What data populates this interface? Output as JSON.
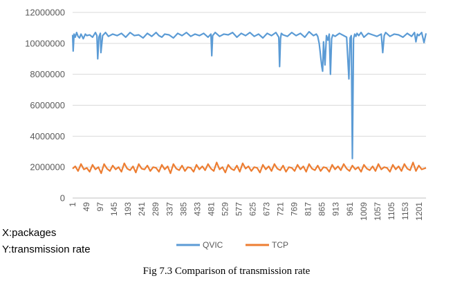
{
  "chart_data": {
    "type": "line",
    "title": "",
    "xlabel": "",
    "ylabel": "",
    "ylim": [
      0,
      12000000
    ],
    "yticks": [
      0,
      2000000,
      4000000,
      6000000,
      8000000,
      10000000,
      12000000
    ],
    "ytick_labels": [
      "0",
      "2000000",
      "4000000",
      "6000000",
      "8000000",
      "10000000",
      "12000000"
    ],
    "xlim": [
      1,
      1225
    ],
    "xticks": [
      1,
      49,
      97,
      145,
      193,
      241,
      289,
      337,
      385,
      433,
      481,
      529,
      577,
      625,
      673,
      721,
      769,
      817,
      865,
      913,
      961,
      1009,
      1057,
      1105,
      1153,
      1201
    ],
    "xtick_labels": [
      "1",
      "49",
      "97",
      "145",
      "193",
      "241",
      "289",
      "337",
      "385",
      "433",
      "481",
      "529",
      "577",
      "625",
      "673",
      "721",
      "769",
      "817",
      "865",
      "913",
      "961",
      "1009",
      "1057",
      "1105",
      "1153",
      "1201"
    ],
    "grid": "horizontal",
    "legend": "bottom",
    "series": [
      {
        "name": "QVIC",
        "color": "#5b9bd5",
        "x": [
          1,
          3,
          6,
          10,
          15,
          20,
          25,
          30,
          34,
          38,
          45,
          50,
          60,
          70,
          80,
          85,
          88,
          92,
          97,
          99,
          105,
          115,
          125,
          140,
          155,
          170,
          185,
          200,
          215,
          230,
          245,
          260,
          275,
          290,
          300,
          310,
          320,
          335,
          350,
          365,
          380,
          395,
          410,
          425,
          440,
          455,
          470,
          480,
          483,
          486,
          495,
          510,
          525,
          540,
          555,
          570,
          585,
          600,
          615,
          630,
          645,
          660,
          675,
          690,
          705,
          715,
          718,
          721,
          724,
          730,
          745,
          760,
          775,
          790,
          805,
          820,
          835,
          845,
          850,
          855,
          858,
          861,
          864,
          867,
          870,
          875,
          880,
          885,
          890,
          894,
          898,
          902,
          910,
          925,
          940,
          950,
          958,
          962,
          966,
          970,
          974,
          978,
          982,
          986,
          992,
          1000,
          1010,
          1025,
          1040,
          1055,
          1070,
          1075,
          1080,
          1085,
          1100,
          1115,
          1130,
          1145,
          1160,
          1175,
          1185,
          1190,
          1195,
          1200,
          1210,
          1218,
          1225
        ],
        "values": [
          10550000,
          9500000,
          10600000,
          10400000,
          10700000,
          10450000,
          10350000,
          10600000,
          10450000,
          10300000,
          10600000,
          10500000,
          10550000,
          10400000,
          10700000,
          10500000,
          9000000,
          10400000,
          10650000,
          9400000,
          10500000,
          10700000,
          10450000,
          10600000,
          10500000,
          10650000,
          10400000,
          10700000,
          10500000,
          10550000,
          10350000,
          10650000,
          10450000,
          10700000,
          10500000,
          10400000,
          10600000,
          10550000,
          10350000,
          10650000,
          10500000,
          10700000,
          10450000,
          10600000,
          10500000,
          10650000,
          10400000,
          10600000,
          9200000,
          10500000,
          10700000,
          10450000,
          10600000,
          10550000,
          10700000,
          10400000,
          10650000,
          10500000,
          10700000,
          10450000,
          10600000,
          10350000,
          10650000,
          10500000,
          10700000,
          10400000,
          8500000,
          10300000,
          10650000,
          10550000,
          10450000,
          10700000,
          10500000,
          10650000,
          10400000,
          10750000,
          10500000,
          10600000,
          10450000,
          10000000,
          9500000,
          9000000,
          8500000,
          8200000,
          10100000,
          8600000,
          10500000,
          10200000,
          10600000,
          8000000,
          10300000,
          10550000,
          10450000,
          10650000,
          10500000,
          10400000,
          7700000,
          10350000,
          10500000,
          2550000,
          10300000,
          10600000,
          10450000,
          10650000,
          10500000,
          10700000,
          10400000,
          10650000,
          10550000,
          10450000,
          10600000,
          9400000,
          10500000,
          10700000,
          10450000,
          10600000,
          10550000,
          10400000,
          10650000,
          10450000,
          10700000,
          10100000,
          10600000,
          10500000,
          10700000,
          10050000,
          10650000
        ]
      },
      {
        "name": "TCP",
        "color": "#ed7d31",
        "x": [
          1,
          10,
          20,
          30,
          40,
          50,
          60,
          70,
          80,
          90,
          100,
          110,
          120,
          130,
          140,
          150,
          160,
          170,
          180,
          190,
          200,
          210,
          220,
          230,
          240,
          250,
          260,
          270,
          280,
          290,
          300,
          310,
          320,
          330,
          340,
          350,
          360,
          370,
          380,
          390,
          400,
          410,
          420,
          430,
          440,
          450,
          460,
          470,
          480,
          490,
          500,
          510,
          520,
          530,
          540,
          550,
          560,
          570,
          580,
          590,
          600,
          610,
          620,
          630,
          640,
          650,
          660,
          670,
          680,
          690,
          700,
          710,
          720,
          730,
          740,
          750,
          760,
          770,
          780,
          790,
          800,
          810,
          820,
          830,
          840,
          850,
          860,
          870,
          880,
          890,
          900,
          910,
          920,
          930,
          940,
          950,
          960,
          970,
          980,
          990,
          1000,
          1010,
          1020,
          1030,
          1040,
          1050,
          1060,
          1070,
          1080,
          1090,
          1100,
          1110,
          1120,
          1130,
          1140,
          1150,
          1160,
          1170,
          1180,
          1190,
          1200,
          1210,
          1225
        ],
        "values": [
          1900000,
          2050000,
          1750000,
          2200000,
          1850000,
          1950000,
          1700000,
          2150000,
          1850000,
          2000000,
          1600000,
          2200000,
          1900000,
          1750000,
          2100000,
          1850000,
          2000000,
          1700000,
          2250000,
          1900000,
          1800000,
          2050000,
          1650000,
          2200000,
          1900000,
          1850000,
          2100000,
          1750000,
          2000000,
          1950000,
          1700000,
          2150000,
          1850000,
          2050000,
          1600000,
          2200000,
          1900000,
          1800000,
          2100000,
          1750000,
          2000000,
          1950000,
          1700000,
          2150000,
          1850000,
          2050000,
          1800000,
          2200000,
          1900000,
          1750000,
          2300000,
          1850000,
          2000000,
          1650000,
          2150000,
          1900000,
          1800000,
          2100000,
          1700000,
          2250000,
          1900000,
          2050000,
          1750000,
          2000000,
          1950000,
          1650000,
          2150000,
          1850000,
          2050000,
          1750000,
          2200000,
          1900000,
          1800000,
          2100000,
          1700000,
          2000000,
          1950000,
          1750000,
          2150000,
          1850000,
          2050000,
          1700000,
          2200000,
          1900000,
          1800000,
          2100000,
          1750000,
          2000000,
          1950000,
          1700000,
          2150000,
          1850000,
          2050000,
          1800000,
          2200000,
          1900000,
          1750000,
          2100000,
          1850000,
          2000000,
          1700000,
          2150000,
          1900000,
          1800000,
          2050000,
          1750000,
          2200000,
          1850000,
          2000000,
          1950000,
          1700000,
          2150000,
          1850000,
          2050000,
          1750000,
          2200000,
          1900000,
          1800000,
          2300000,
          1750000,
          2100000,
          1850000,
          1950000
        ]
      }
    ]
  },
  "notes": {
    "x_axis": "X:packages",
    "y_axis": "Y:transmission rate"
  },
  "caption": "Fig 7.3 Comparison of transmission rate"
}
